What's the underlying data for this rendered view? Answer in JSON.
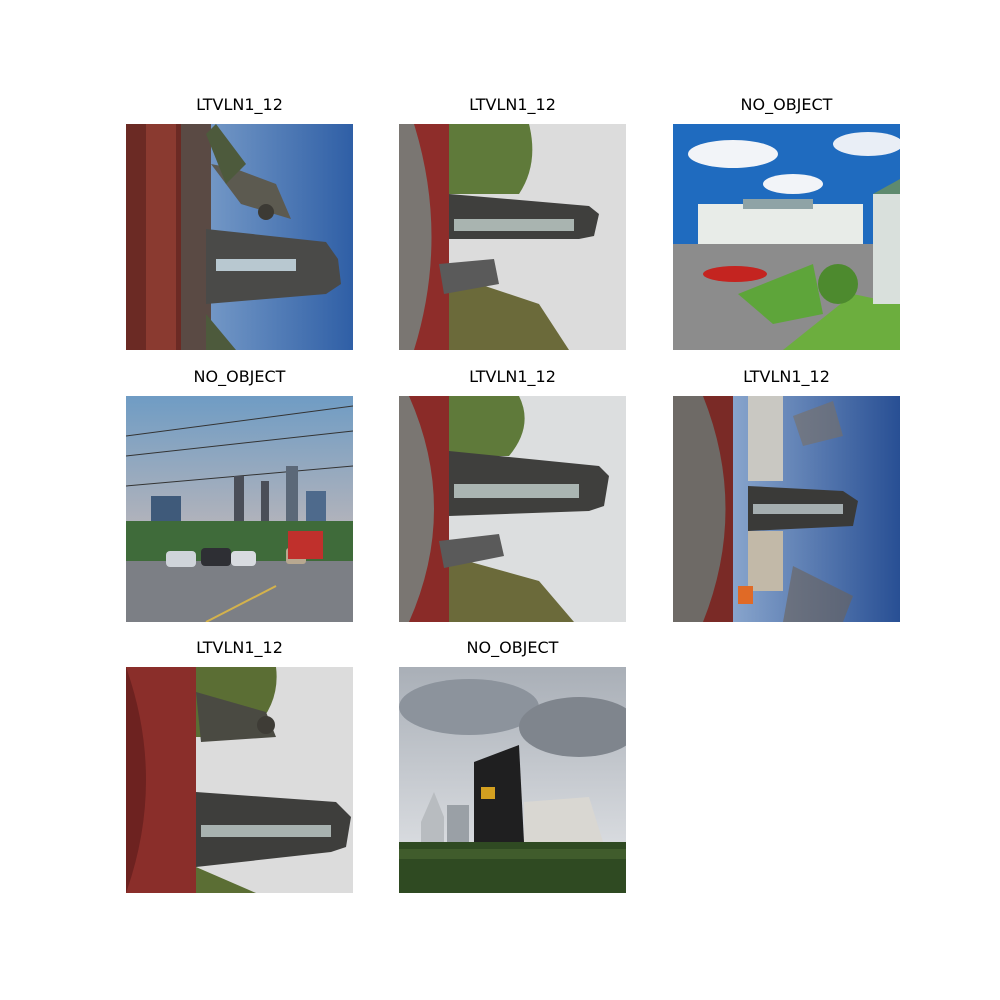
{
  "images": [
    {
      "title": "LTVLN1_12"
    },
    {
      "title": "LTVLN1_12"
    },
    {
      "title": "NO_OBJECT"
    },
    {
      "title": "NO_OBJECT"
    },
    {
      "title": "LTVLN1_12"
    },
    {
      "title": "LTVLN1_12"
    },
    {
      "title": "LTVLN1_12"
    },
    {
      "title": "NO_OBJECT"
    }
  ]
}
